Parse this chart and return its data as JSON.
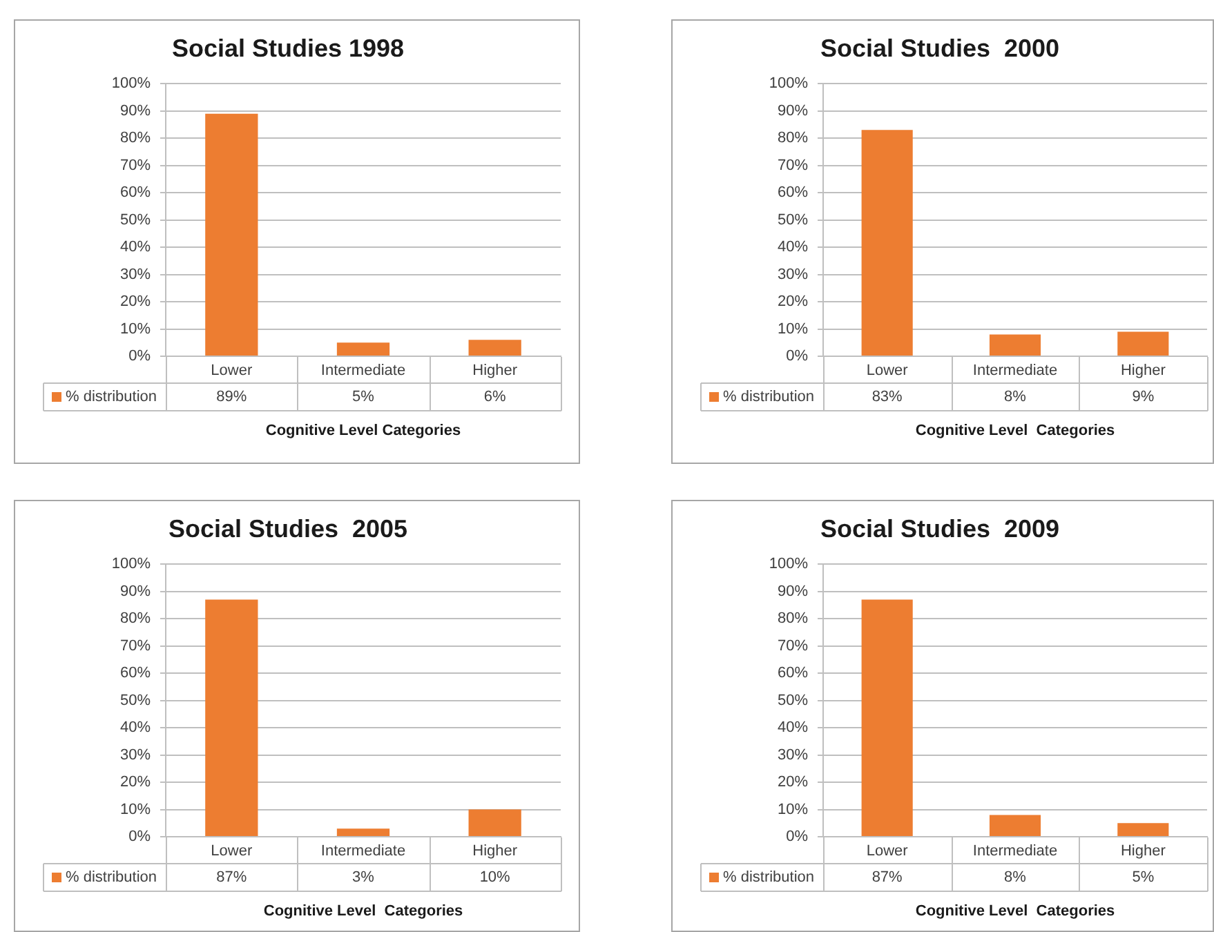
{
  "chart_data": [
    {
      "type": "bar",
      "title": "Social Studies 1998",
      "xlabel": "Cognitive Level Categories",
      "categories": [
        "Lower",
        "Intermediate",
        "Higher"
      ],
      "series": [
        {
          "name": "% distribution",
          "color": "#ed7d31",
          "values": [
            89,
            5,
            6
          ],
          "value_labels": [
            "89%",
            "5%",
            "6%"
          ]
        }
      ],
      "ylim": [
        0,
        100
      ],
      "yticks": [
        {
          "value": 0,
          "label": "0%"
        },
        {
          "value": 10,
          "label": "10%"
        },
        {
          "value": 20,
          "label": "20%"
        },
        {
          "value": 30,
          "label": "30%"
        },
        {
          "value": 40,
          "label": "40%"
        },
        {
          "value": 50,
          "label": "50%"
        },
        {
          "value": 60,
          "label": "60%"
        },
        {
          "value": 70,
          "label": "70%"
        },
        {
          "value": 80,
          "label": "80%"
        },
        {
          "value": 90,
          "label": "90%"
        },
        {
          "value": 100,
          "label": "100%"
        }
      ],
      "grid": "y",
      "legend": "bottom left"
    },
    {
      "type": "bar",
      "title": "Social Studies  2000",
      "xlabel": "Cognitive Level  Categories",
      "categories": [
        "Lower",
        "Intermediate",
        "Higher"
      ],
      "series": [
        {
          "name": "% distribution",
          "color": "#ed7d31",
          "values": [
            83,
            8,
            9
          ],
          "value_labels": [
            "83%",
            "8%",
            "9%"
          ]
        }
      ],
      "ylim": [
        0,
        100
      ],
      "yticks": [
        {
          "value": 0,
          "label": "0%"
        },
        {
          "value": 10,
          "label": "10%"
        },
        {
          "value": 20,
          "label": "20%"
        },
        {
          "value": 30,
          "label": "30%"
        },
        {
          "value": 40,
          "label": "40%"
        },
        {
          "value": 50,
          "label": "50%"
        },
        {
          "value": 60,
          "label": "60%"
        },
        {
          "value": 70,
          "label": "70%"
        },
        {
          "value": 80,
          "label": "80%"
        },
        {
          "value": 90,
          "label": "90%"
        },
        {
          "value": 100,
          "label": "100%"
        }
      ],
      "grid": "y",
      "legend": "bottom left"
    },
    {
      "type": "bar",
      "title": "Social Studies  2005",
      "xlabel": "Cognitive Level  Categories",
      "categories": [
        "Lower",
        "Intermediate",
        "Higher"
      ],
      "series": [
        {
          "name": "% distribution",
          "color": "#ed7d31",
          "values": [
            87,
            3,
            10
          ],
          "value_labels": [
            "87%",
            "3%",
            "10%"
          ]
        }
      ],
      "ylim": [
        0,
        100
      ],
      "yticks": [
        {
          "value": 0,
          "label": "0%"
        },
        {
          "value": 10,
          "label": "10%"
        },
        {
          "value": 20,
          "label": "20%"
        },
        {
          "value": 30,
          "label": "30%"
        },
        {
          "value": 40,
          "label": "40%"
        },
        {
          "value": 50,
          "label": "50%"
        },
        {
          "value": 60,
          "label": "60%"
        },
        {
          "value": 70,
          "label": "70%"
        },
        {
          "value": 80,
          "label": "80%"
        },
        {
          "value": 90,
          "label": "90%"
        },
        {
          "value": 100,
          "label": "100%"
        }
      ],
      "grid": "y",
      "legend": "bottom left"
    },
    {
      "type": "bar",
      "title": "Social Studies  2009",
      "xlabel": "Cognitive Level  Categories",
      "categories": [
        "Lower",
        "Intermediate",
        "Higher"
      ],
      "series": [
        {
          "name": "% distribution",
          "color": "#ed7d31",
          "values": [
            87,
            8,
            5
          ],
          "value_labels": [
            "87%",
            "8%",
            "5%"
          ]
        }
      ],
      "ylim": [
        0,
        100
      ],
      "yticks": [
        {
          "value": 0,
          "label": "0%"
        },
        {
          "value": 10,
          "label": "10%"
        },
        {
          "value": 20,
          "label": "20%"
        },
        {
          "value": 30,
          "label": "30%"
        },
        {
          "value": 40,
          "label": "40%"
        },
        {
          "value": 50,
          "label": "50%"
        },
        {
          "value": 60,
          "label": "60%"
        },
        {
          "value": 70,
          "label": "70%"
        },
        {
          "value": 80,
          "label": "80%"
        },
        {
          "value": 90,
          "label": "90%"
        },
        {
          "value": 100,
          "label": "100%"
        }
      ],
      "grid": "y",
      "legend": "bottom left"
    }
  ]
}
